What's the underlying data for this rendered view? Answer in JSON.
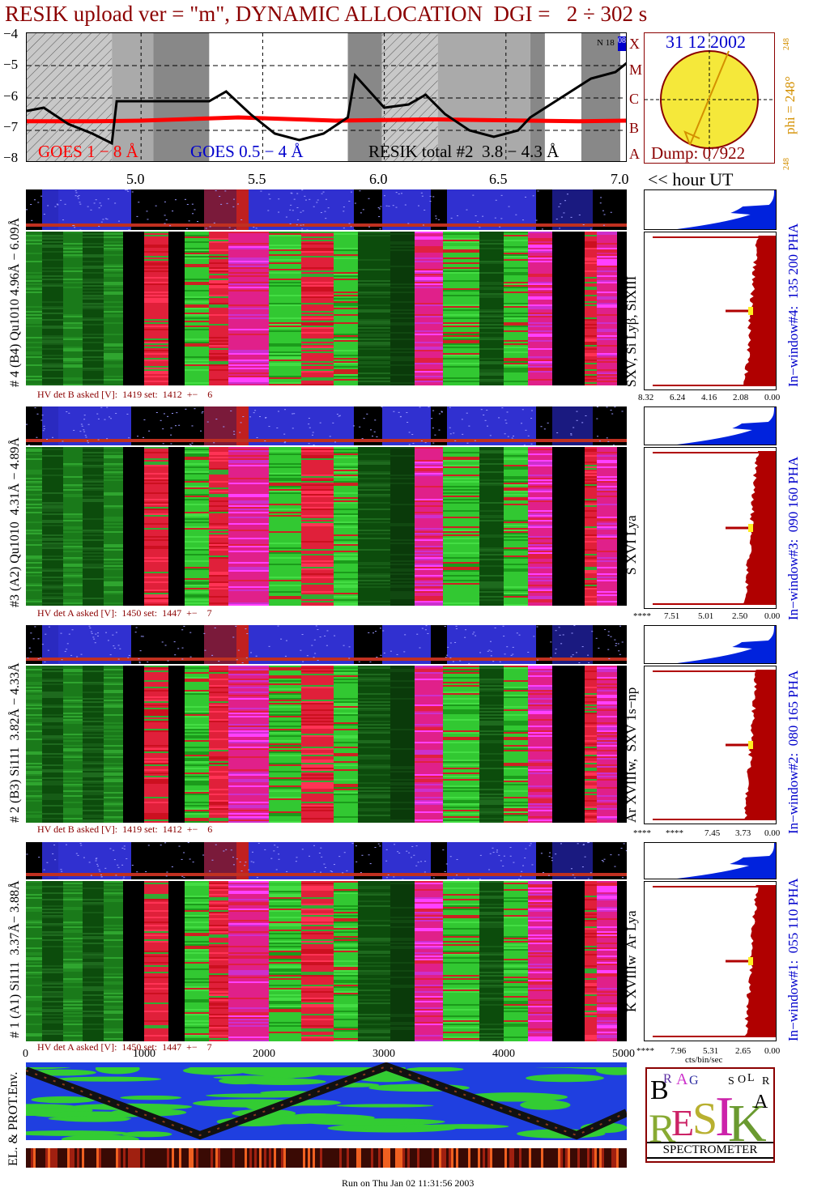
{
  "title": "RESIK upload ver = \"m\", DYNAMIC ALLOCATION  DGI =   2 ÷ 302 s",
  "goes": {
    "legend_goes1": "GOES 1 − 8 Å",
    "legend_goes2": "GOES 0.5 − 4 Å",
    "legend_resik": "RESIK total #2  3.8 − 4.3 Å",
    "flare_classes": [
      "A",
      "B",
      "C",
      "M",
      "X"
    ],
    "n_label": "N 18",
    "n_value": "08",
    "y_ticks": [
      "−4",
      "−5",
      "−6",
      "−7",
      "−8"
    ],
    "x_ticks": [
      "5.0",
      "5.5",
      "6.0",
      "6.5",
      "7.0"
    ],
    "x_unit": "<< hour UT",
    "colors": {
      "goes1": "#ff0000",
      "goes2": "#0000cc",
      "resik": "#000000"
    }
  },
  "sun": {
    "date": "31 12 2002",
    "dump": "Dump: 07922",
    "phi": "phi = 248°",
    "phi_top": "248",
    "phi_bottom": "248"
  },
  "panels": [
    {
      "side_label": "# 4 (B4) Qu1010 4.96Å − 6.09Å",
      "line_label": "SXV, Si Lyβ, SiXIII",
      "window_label": "In−window#4:  135 200 PHA",
      "hv": "HV det B asked [V]:  1419 set:  1412  +−    6",
      "hist_ticks": [
        "8.32",
        "6.24",
        "4.16",
        "2.08",
        "0.00"
      ]
    },
    {
      "side_label": "#3 (A2) Qu1010  4.31Å − 4.89Å",
      "line_label": "S XVI Lya",
      "window_label": "In−window#3:  090 160 PHA",
      "hv": "HV det A asked [V]:  1450 set:  1447  +−    7",
      "hist_ticks": [
        "****",
        "7.51",
        "5.01",
        "2.50",
        "0.00"
      ]
    },
    {
      "side_label": "# 2 (B3) Si111  3.82Å − 4.33Å",
      "line_label": "Ar XVIIIw,  SXV 1s−np",
      "window_label": "In−window#2:  080 165 PHA",
      "hv": "HV det B asked [V]:  1419 set:  1412  +−    6",
      "hist_ticks": [
        "****",
        "****",
        "7.45",
        "3.73",
        "0.00"
      ]
    },
    {
      "side_label": "# 1 (A1) Si111  3.37Å− 3.88Å",
      "line_label": "K XVIIIw  Ar Lya",
      "window_label": "In−window#1:  055 110 PHA",
      "hv": "HV det A asked [V]:  1450 set:  1447  +−    7",
      "hist_ticks": [
        "****",
        "7.96",
        "5.31",
        "2.65",
        "0.00"
      ]
    }
  ],
  "bottom": {
    "x_ticks": [
      "0",
      "1000",
      "2000",
      "3000",
      "4000",
      "5000"
    ],
    "hist_unit": "cts/bin/sec",
    "env_label": "EL. & PROT.Env.",
    "run_label": "Run on Thu Jan 02 11:31:56 2003"
  },
  "logo": {
    "letters": [
      "B",
      "R",
      "A",
      "G",
      "R",
      "E",
      "S",
      "I",
      "K",
      "S",
      "O",
      "L",
      "A",
      "R"
    ],
    "spectrometer": "SPECTROMETER"
  },
  "chart_data": {
    "type": "line",
    "title": "RESIK upload ver = \"m\", DYNAMIC ALLOCATION  DGI =   2 ÷ 302 s",
    "xlabel": "<< hour UT",
    "ylabel": "",
    "xlim": [
      4.53,
      7.0
    ],
    "ylim": [
      -8,
      -4
    ],
    "series": [
      {
        "name": "GOES 1 − 8 Å",
        "x": [
          4.53,
          4.8,
          5.0,
          5.2,
          5.4,
          5.6,
          5.8,
          6.0,
          6.2,
          6.4,
          6.6,
          6.8,
          7.0
        ],
        "y": [
          -6.72,
          -6.72,
          -6.7,
          -6.65,
          -6.6,
          -6.65,
          -6.7,
          -6.68,
          -6.66,
          -6.68,
          -6.7,
          -6.72,
          -6.7
        ]
      },
      {
        "name": "RESIK total #2  3.8 − 4.3 Å",
        "x": [
          4.53,
          4.6,
          4.7,
          4.8,
          4.88,
          4.9,
          5.28,
          5.35,
          5.45,
          5.55,
          5.65,
          5.75,
          5.85,
          5.88,
          6.0,
          6.1,
          6.17,
          6.25,
          6.35,
          6.45,
          6.55,
          6.6,
          6.85,
          6.95,
          7.0
        ],
        "y": [
          -6.4,
          -6.3,
          -6.8,
          -7.1,
          -7.4,
          -6.1,
          -6.1,
          -5.8,
          -6.5,
          -7.1,
          -7.3,
          -7.1,
          -6.6,
          -5.3,
          -6.3,
          -6.2,
          -5.9,
          -6.5,
          -7.0,
          -7.2,
          -7.0,
          -6.6,
          -5.4,
          -5.2,
          -4.9
        ]
      }
    ],
    "flare_classes": [
      "A",
      "B",
      "C",
      "M",
      "X"
    ]
  }
}
